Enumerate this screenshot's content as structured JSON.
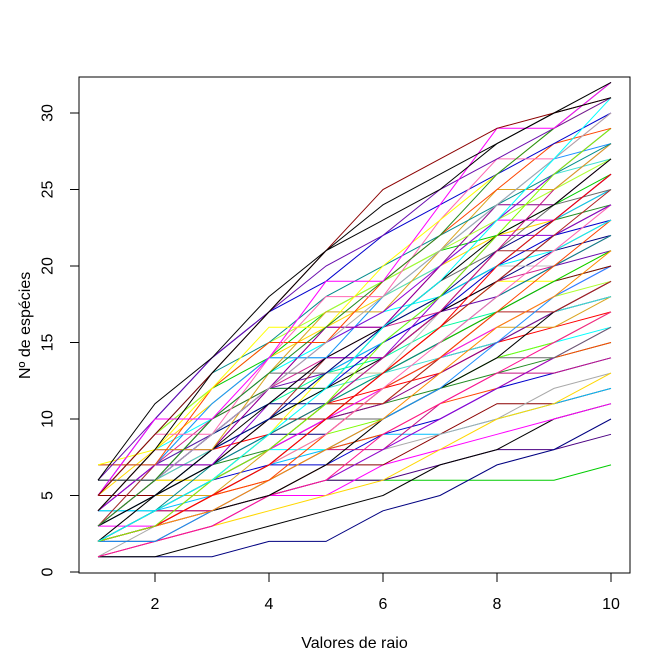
{
  "chart_data": {
    "type": "line",
    "title": "",
    "xlabel": "Valores de raio",
    "ylabel": "Nº de espécies",
    "x": [
      1,
      2,
      3,
      4,
      5,
      6,
      7,
      8,
      9,
      10
    ],
    "xlim": [
      1,
      10
    ],
    "ylim": [
      0,
      32
    ],
    "x_ticks": [
      2,
      4,
      6,
      8,
      10
    ],
    "y_ticks": [
      0,
      5,
      10,
      15,
      20,
      25,
      30
    ],
    "grid": false,
    "legend": "none",
    "series": [
      {
        "color": "#00CC00",
        "values": [
          2,
          3,
          4,
          5,
          6,
          6,
          6,
          6,
          6,
          7
        ]
      },
      {
        "color": "#4B0082",
        "values": [
          2,
          3,
          4,
          5,
          6,
          6,
          7,
          8,
          8,
          9
        ]
      },
      {
        "color": "#000080",
        "values": [
          1,
          1,
          1,
          2,
          2,
          4,
          5,
          7,
          8,
          10
        ]
      },
      {
        "color": "#000000",
        "values": [
          1,
          1,
          2,
          3,
          4,
          5,
          7,
          8,
          10,
          11
        ]
      },
      {
        "color": "#FF00FF",
        "values": [
          3,
          3,
          4,
          5,
          5,
          7,
          8,
          9,
          10,
          11
        ]
      },
      {
        "color": "#8B0000",
        "values": [
          2,
          4,
          4,
          5,
          7,
          7,
          9,
          11,
          11,
          12
        ]
      },
      {
        "color": "#00BFFF",
        "values": [
          2,
          4,
          5,
          7,
          8,
          9,
          9,
          10,
          11,
          12
        ]
      },
      {
        "color": "#A9A9A9",
        "values": [
          1,
          3,
          4,
          5,
          6,
          8,
          9,
          10,
          12,
          13
        ]
      },
      {
        "color": "#FFD700",
        "values": [
          1,
          2,
          3,
          4,
          5,
          6,
          8,
          10,
          11,
          13
        ]
      },
      {
        "color": "#0000CD",
        "values": [
          4,
          4,
          6,
          7,
          7,
          9,
          10,
          12,
          13,
          14
        ]
      },
      {
        "color": "#C71585",
        "values": [
          2,
          4,
          4,
          6,
          8,
          8,
          11,
          13,
          13,
          14
        ]
      },
      {
        "color": "#228B22",
        "values": [
          3,
          5,
          7,
          8,
          10,
          11,
          12,
          13,
          14,
          15
        ]
      },
      {
        "color": "#FF4500",
        "values": [
          2,
          3,
          5,
          6,
          8,
          9,
          11,
          12,
          14,
          15
        ]
      },
      {
        "color": "#9400D3",
        "values": [
          1,
          2,
          3,
          5,
          6,
          8,
          10,
          12,
          14,
          16
        ]
      },
      {
        "color": "#00FFFF",
        "values": [
          4,
          4,
          6,
          8,
          8,
          10,
          12,
          14,
          15,
          16
        ]
      },
      {
        "color": "#696969",
        "values": [
          2,
          5,
          5,
          7,
          10,
          10,
          12,
          14,
          14,
          16
        ]
      },
      {
        "color": "#FF0000",
        "values": [
          3,
          6,
          8,
          9,
          11,
          12,
          13,
          15,
          16,
          17
        ]
      },
      {
        "color": "#7CFC00",
        "values": [
          2,
          3,
          5,
          7,
          9,
          10,
          12,
          14,
          15,
          17
        ]
      },
      {
        "color": "#FF1493",
        "values": [
          1,
          2,
          3,
          5,
          6,
          9,
          11,
          13,
          15,
          17
        ]
      },
      {
        "color": "#000080",
        "values": [
          5,
          5,
          7,
          9,
          9,
          12,
          14,
          15,
          17,
          18
        ]
      },
      {
        "color": "#DAA520",
        "values": [
          3,
          5,
          5,
          8,
          11,
          11,
          14,
          16,
          16,
          18
        ]
      },
      {
        "color": "#40E0D0",
        "values": [
          3,
          6,
          8,
          10,
          12,
          13,
          14,
          15,
          17,
          18
        ]
      },
      {
        "color": "#8B008B",
        "values": [
          2,
          4,
          6,
          8,
          10,
          11,
          13,
          15,
          17,
          19
        ]
      },
      {
        "color": "#000000",
        "values": [
          2,
          2,
          4,
          5,
          7,
          10,
          12,
          14,
          17,
          19
        ]
      },
      {
        "color": "#ADFF2F",
        "values": [
          5,
          5,
          8,
          10,
          10,
          12,
          14,
          16,
          18,
          19
        ]
      },
      {
        "color": "#B22222",
        "values": [
          3,
          6,
          6,
          9,
          11,
          11,
          14,
          17,
          17,
          19
        ]
      },
      {
        "color": "#00FA9A",
        "values": [
          4,
          7,
          9,
          11,
          13,
          14,
          16,
          17,
          19,
          20
        ]
      },
      {
        "color": "#FF00FF",
        "values": [
          2,
          4,
          6,
          8,
          10,
          12,
          14,
          16,
          18,
          20
        ]
      },
      {
        "color": "#1E90FF",
        "values": [
          2,
          2,
          4,
          6,
          8,
          10,
          12,
          15,
          18,
          20
        ]
      },
      {
        "color": "#8B0000",
        "values": [
          5,
          5,
          8,
          10,
          10,
          13,
          15,
          17,
          19,
          20
        ]
      },
      {
        "color": "#FFFF00",
        "values": [
          3,
          6,
          6,
          9,
          13,
          13,
          16,
          19,
          19,
          21
        ]
      },
      {
        "color": "#6A0DAD",
        "values": [
          4,
          7,
          9,
          12,
          13,
          15,
          17,
          18,
          20,
          21
        ]
      },
      {
        "color": "#00CC00",
        "values": [
          2,
          4,
          6,
          8,
          11,
          13,
          15,
          17,
          19,
          21
        ]
      },
      {
        "color": "#FF8C00",
        "values": [
          2,
          3,
          4,
          6,
          8,
          10,
          13,
          16,
          18,
          21
        ]
      },
      {
        "color": "#000080",
        "values": [
          6,
          6,
          9,
          11,
          11,
          14,
          17,
          19,
          21,
          22
        ]
      },
      {
        "color": "#C0C0C0",
        "values": [
          3,
          7,
          7,
          10,
          13,
          13,
          17,
          20,
          20,
          22
        ]
      },
      {
        "color": "#D02090",
        "values": [
          4,
          7,
          10,
          12,
          14,
          16,
          17,
          19,
          20,
          22
        ]
      },
      {
        "color": "#008B8B",
        "values": [
          2,
          4,
          7,
          9,
          11,
          13,
          15,
          18,
          20,
          22
        ]
      },
      {
        "color": "#FF4500",
        "values": [
          2,
          3,
          5,
          6,
          9,
          12,
          14,
          17,
          20,
          23
        ]
      },
      {
        "color": "#0000CD",
        "values": [
          6,
          6,
          9,
          12,
          12,
          15,
          17,
          20,
          22,
          23
        ]
      },
      {
        "color": "#A52A2A",
        "values": [
          3,
          7,
          7,
          10,
          14,
          14,
          17,
          21,
          21,
          23
        ]
      },
      {
        "color": "#00FFFF",
        "values": [
          4,
          8,
          10,
          13,
          15,
          17,
          18,
          20,
          21,
          23
        ]
      },
      {
        "color": "#000000",
        "values": [
          2,
          5,
          7,
          10,
          12,
          14,
          17,
          19,
          22,
          24
        ]
      },
      {
        "color": "#FF69B4",
        "values": [
          2,
          3,
          5,
          7,
          9,
          12,
          15,
          18,
          21,
          24
        ]
      },
      {
        "color": "#228B22",
        "values": [
          6,
          6,
          10,
          12,
          12,
          16,
          18,
          20,
          23,
          24
        ]
      },
      {
        "color": "#9400D3",
        "values": [
          4,
          7,
          7,
          11,
          14,
          14,
          18,
          22,
          22,
          24
        ]
      },
      {
        "color": "#FFD700",
        "values": [
          5,
          8,
          11,
          14,
          16,
          18,
          20,
          22,
          23,
          25
        ]
      },
      {
        "color": "#00BFFF",
        "values": [
          3,
          5,
          8,
          10,
          13,
          15,
          18,
          20,
          23,
          25
        ]
      },
      {
        "color": "#B22222",
        "values": [
          2,
          3,
          5,
          7,
          10,
          13,
          16,
          19,
          22,
          25
        ]
      },
      {
        "color": "#696969",
        "values": [
          6,
          6,
          10,
          13,
          13,
          16,
          19,
          21,
          24,
          25
        ]
      },
      {
        "color": "#FF00FF",
        "values": [
          4,
          8,
          8,
          12,
          16,
          16,
          20,
          23,
          23,
          26
        ]
      },
      {
        "color": "#00CC00",
        "values": [
          5,
          9,
          12,
          14,
          17,
          19,
          21,
          22,
          24,
          26
        ]
      },
      {
        "color": "#000080",
        "values": [
          3,
          5,
          8,
          10,
          13,
          16,
          18,
          21,
          23,
          26
        ]
      },
      {
        "color": "#FF0000",
        "values": [
          2,
          3,
          5,
          7,
          10,
          13,
          16,
          20,
          23,
          26
        ]
      },
      {
        "color": "#40E0D0",
        "values": [
          7,
          7,
          11,
          14,
          14,
          18,
          20,
          23,
          26,
          27
        ]
      },
      {
        "color": "#8B008B",
        "values": [
          4,
          8,
          8,
          12,
          16,
          16,
          20,
          24,
          24,
          27
        ]
      },
      {
        "color": "#ADFF2F",
        "values": [
          5,
          9,
          12,
          15,
          17,
          19,
          21,
          23,
          25,
          27
        ]
      },
      {
        "color": "#000000",
        "values": [
          3,
          5,
          8,
          11,
          14,
          16,
          19,
          22,
          24,
          27
        ]
      },
      {
        "color": "#C71585",
        "values": [
          2,
          3,
          6,
          8,
          11,
          14,
          17,
          21,
          25,
          28
        ]
      },
      {
        "color": "#1E90FF",
        "values": [
          7,
          7,
          11,
          14,
          14,
          18,
          21,
          24,
          27,
          28
        ]
      },
      {
        "color": "#DAA520",
        "values": [
          4,
          8,
          8,
          13,
          17,
          17,
          21,
          25,
          25,
          28
        ]
      },
      {
        "color": "#008B8B",
        "values": [
          5,
          9,
          13,
          15,
          18,
          20,
          22,
          24,
          26,
          28
        ]
      },
      {
        "color": "#9400D3",
        "values": [
          3,
          6,
          9,
          12,
          15,
          17,
          20,
          23,
          26,
          29
        ]
      },
      {
        "color": "#7CFC00",
        "values": [
          2,
          3,
          6,
          8,
          11,
          15,
          18,
          22,
          26,
          29
        ]
      },
      {
        "color": "#FF4500",
        "values": [
          7,
          7,
          12,
          15,
          15,
          19,
          22,
          25,
          28,
          29
        ]
      },
      {
        "color": "#0000CD",
        "values": [
          5,
          10,
          14,
          17,
          19,
          22,
          24,
          26,
          28,
          30
        ]
      },
      {
        "color": "#FF69B4",
        "values": [
          5,
          9,
          9,
          14,
          18,
          18,
          23,
          27,
          27,
          30
        ]
      },
      {
        "color": "#A9A9A9",
        "values": [
          3,
          6,
          9,
          12,
          15,
          18,
          21,
          24,
          27,
          30
        ]
      },
      {
        "color": "#00FFFF",
        "values": [
          2,
          4,
          6,
          9,
          12,
          16,
          19,
          23,
          27,
          31
        ]
      },
      {
        "color": "#FFFF00",
        "values": [
          7,
          8,
          12,
          16,
          16,
          20,
          23,
          26,
          29,
          31
        ]
      },
      {
        "color": "#6A0DAD",
        "values": [
          6,
          10,
          14,
          17,
          20,
          22,
          25,
          27,
          29,
          31
        ]
      },
      {
        "color": "#228B22",
        "values": [
          3,
          6,
          10,
          13,
          16,
          19,
          22,
          26,
          29,
          32
        ]
      },
      {
        "color": "#FF00FF",
        "values": [
          5,
          10,
          10,
          14,
          19,
          19,
          24,
          29,
          29,
          32
        ]
      },
      {
        "color": "#000000",
        "values": [
          6,
          11,
          14,
          18,
          21,
          23,
          25,
          28,
          30,
          32
        ]
      },
      {
        "color": "#8B0000",
        "values": [
          5,
          9,
          13,
          17,
          21,
          25,
          27,
          29,
          30,
          31
        ]
      },
      {
        "color": "#000000",
        "values": [
          4,
          8,
          13,
          17,
          21,
          24,
          26,
          28,
          30,
          31
        ]
      }
    ]
  },
  "axes": {
    "box_color": "#000000",
    "tick_color": "#000000",
    "label_color": "#000000"
  }
}
